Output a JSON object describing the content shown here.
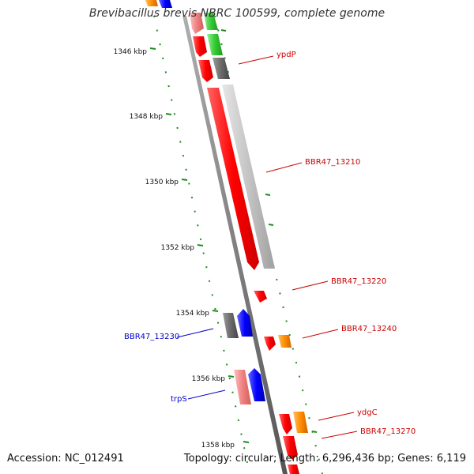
{
  "title": "Brevibacillus brevis NBRC 100599, complete genome",
  "accession": "Accession: NC_012491",
  "summary": "Topology: circular; Length: 6,296,436 bp; Genes: 6,119",
  "scale_labels": [
    "1346 kbp",
    "1348 kbp",
    "1350 kbp",
    "1352 kbp",
    "1354 kbp",
    "1356 kbp",
    "1358 kbp"
  ],
  "gene_labels": {
    "ypdP": "ypdP",
    "bbr47_13210": "BBR47_13210",
    "bbr47_13220": "BBR47_13220",
    "bbr47_13230": "BBR47_13230",
    "bbr47_13240": "BBR47_13240",
    "trpS": "trpS",
    "ydgC": "ydgC",
    "bbr47_13270": "BBR47_13270"
  },
  "colors": {
    "forward_label": "#cc0000",
    "reverse_label": "#0000cc",
    "ruler": "#228b22",
    "backbone": "#808080",
    "red": "#ff0000",
    "green": "#33cc33",
    "grey": "#707070",
    "light_grey": "#c0c0c0",
    "blue": "#0000ff",
    "orange": "#ff8c00",
    "pink": "#f08080"
  }
}
